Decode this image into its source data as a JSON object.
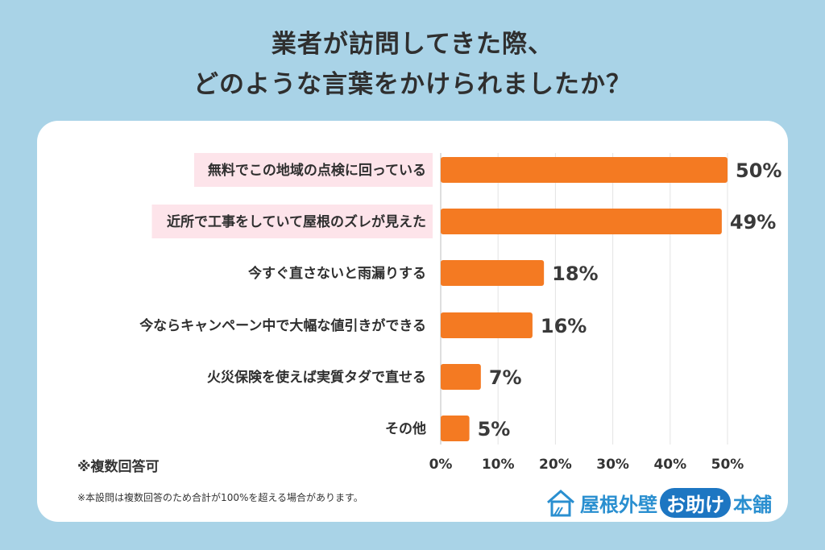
{
  "title": {
    "line1": "業者が訪問してきた際、",
    "line2": "どのような言葉をかけられましたか？"
  },
  "chart_data": {
    "type": "bar",
    "orientation": "horizontal",
    "categories": [
      "無料でこの地域の点検に回っている",
      "近所で工事をしていて屋根のズレが見えた",
      "今すぐ直さないと雨漏りする",
      "今ならキャンペーン中で大幅な値引きができる",
      "火災保険を使えば実質タダで直せる",
      "その他"
    ],
    "values": [
      50,
      49,
      18,
      16,
      7,
      5
    ],
    "value_labels": [
      "50%",
      "49%",
      "18%",
      "16%",
      "7%",
      "5%"
    ],
    "highlighted": [
      true,
      true,
      false,
      false,
      false,
      false
    ],
    "xlim": [
      0,
      50
    ],
    "x_ticks": [
      "0%",
      "10%",
      "20%",
      "30%",
      "40%",
      "50%"
    ],
    "grid": true,
    "bar_color": "#f47a22",
    "highlight_color": "#fde4ea"
  },
  "notes": {
    "multiple": "※複数回答可",
    "footnote": "※本設問は複数回答のため合計が100%を超える場合があります。"
  },
  "logo": {
    "part1": "屋根外壁",
    "part2": "お助け",
    "part3": "本舗"
  },
  "colors": {
    "background": "#a9d3e7",
    "card": "#ffffff",
    "logo_blue": "#2a8fd0"
  }
}
